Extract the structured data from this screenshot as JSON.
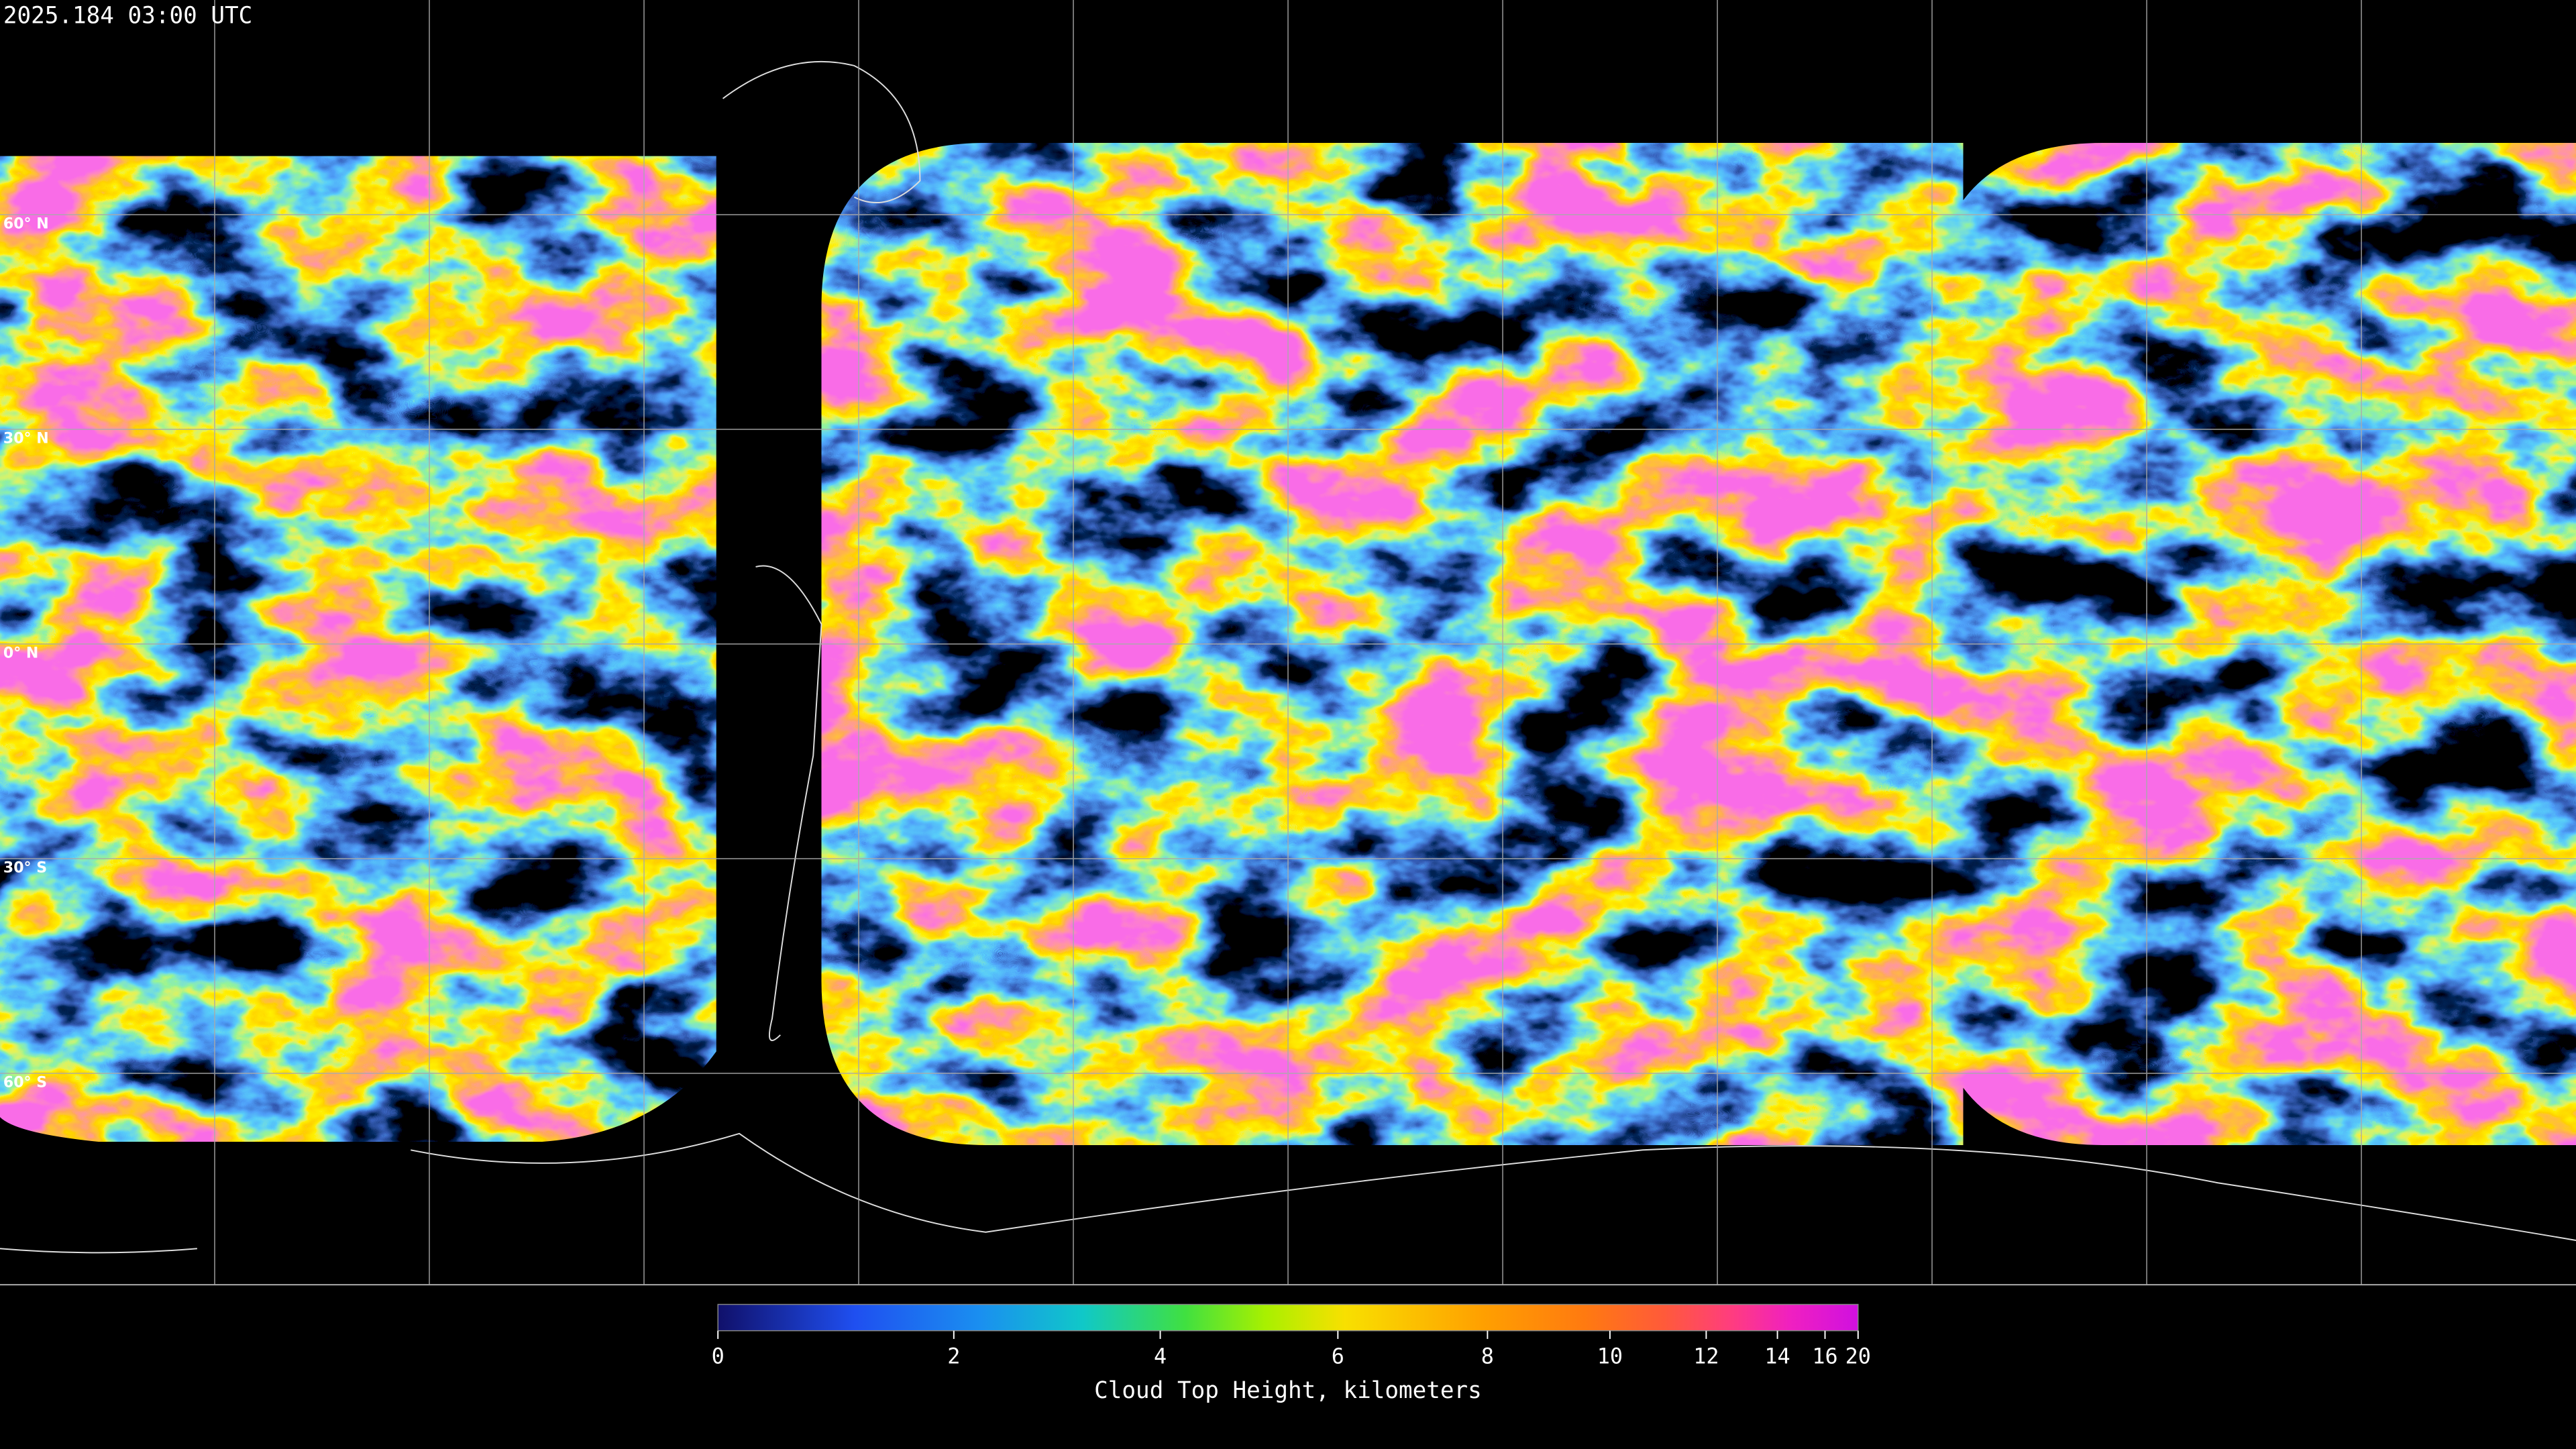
{
  "header": {
    "timestamp": "2025.184 03:00 UTC"
  },
  "latitude_labels": [
    "60° N",
    "30° N",
    "0° N",
    "30° S",
    "60° S"
  ],
  "colorbar": {
    "title": "Cloud Top Height, kilometers",
    "range": [
      0,
      20
    ],
    "ticks": [
      0,
      2,
      4,
      6,
      8,
      10,
      12,
      14,
      16,
      20
    ]
  }
}
